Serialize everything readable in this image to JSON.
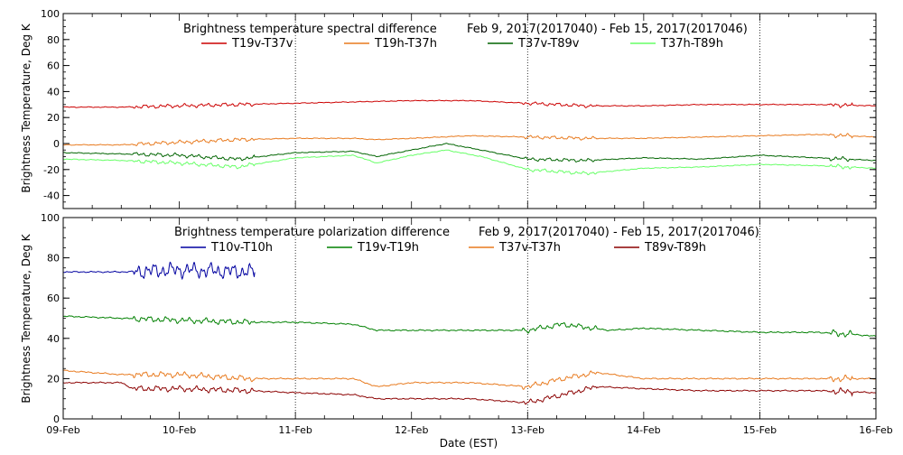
{
  "chart_data": [
    {
      "type": "line",
      "title": "Brightness temperature spectral difference",
      "subtitle": "Feb  9, 2017(2017040) - Feb 15, 2017(2017046)",
      "ylabel": "Brightness Temperature, Deg K",
      "xlabel": "",
      "ylim": [
        -50,
        100
      ],
      "yticks": [
        -40,
        -20,
        0,
        20,
        40,
        60,
        80,
        100
      ],
      "xlim": [
        0,
        7
      ],
      "vlines_at_days": [
        2,
        4,
        6
      ],
      "series": [
        {
          "name": "T19v-T37v",
          "color": "#cc0000",
          "anchors": [
            [
              0,
              28
            ],
            [
              0.5,
              28
            ],
            [
              1,
              29
            ],
            [
              1.5,
              30
            ],
            [
              2,
              31
            ],
            [
              2.5,
              32
            ],
            [
              3,
              33
            ],
            [
              3.5,
              33
            ],
            [
              4,
              31
            ],
            [
              4.5,
              29
            ],
            [
              5,
              29
            ],
            [
              5.5,
              30
            ],
            [
              6,
              30
            ],
            [
              6.5,
              30
            ],
            [
              7,
              29
            ]
          ]
        },
        {
          "name": "T19h-T37h",
          "color": "#e87a1e",
          "anchors": [
            [
              0,
              -1
            ],
            [
              0.5,
              -1
            ],
            [
              1,
              1
            ],
            [
              1.5,
              3
            ],
            [
              2,
              4
            ],
            [
              2.5,
              4
            ],
            [
              2.7,
              3
            ],
            [
              3,
              4
            ],
            [
              3.5,
              6
            ],
            [
              4,
              5
            ],
            [
              4.5,
              4
            ],
            [
              5,
              4
            ],
            [
              5.5,
              5
            ],
            [
              6,
              6
            ],
            [
              6.5,
              7
            ],
            [
              7,
              5
            ]
          ]
        },
        {
          "name": "T37v-T89v",
          "color": "#006400",
          "anchors": [
            [
              0,
              -7
            ],
            [
              0.5,
              -8
            ],
            [
              1,
              -9
            ],
            [
              1.5,
              -12
            ],
            [
              2,
              -7
            ],
            [
              2.5,
              -6
            ],
            [
              2.7,
              -10
            ],
            [
              3,
              -5
            ],
            [
              3.3,
              0
            ],
            [
              3.6,
              -5
            ],
            [
              4,
              -12
            ],
            [
              4.5,
              -13
            ],
            [
              5,
              -11
            ],
            [
              5.5,
              -12
            ],
            [
              6,
              -9
            ],
            [
              6.5,
              -11
            ],
            [
              7,
              -13
            ]
          ]
        },
        {
          "name": "T37h-T89h",
          "color": "#66ff66",
          "anchors": [
            [
              0,
              -12
            ],
            [
              0.5,
              -13
            ],
            [
              1,
              -15
            ],
            [
              1.5,
              -18
            ],
            [
              2,
              -11
            ],
            [
              2.5,
              -9
            ],
            [
              2.7,
              -15
            ],
            [
              3,
              -9
            ],
            [
              3.3,
              -5
            ],
            [
              3.6,
              -10
            ],
            [
              4,
              -20
            ],
            [
              4.5,
              -23
            ],
            [
              5,
              -19
            ],
            [
              5.5,
              -18
            ],
            [
              6,
              -16
            ],
            [
              6.5,
              -17
            ],
            [
              7,
              -19
            ]
          ]
        }
      ]
    },
    {
      "type": "line",
      "title": "Brightness temperature polarization difference",
      "subtitle": "Feb  9, 2017(2017040) - Feb 15, 2017(2017046)",
      "ylabel": "Brightness Temperature, Deg K",
      "xlabel": "Date (EST)",
      "ylim": [
        0,
        100
      ],
      "yticks": [
        0,
        20,
        40,
        60,
        80,
        100
      ],
      "xlim": [
        0,
        7
      ],
      "vlines_at_days": [
        2,
        4,
        6
      ],
      "categories": [
        "09-Feb",
        "10-Feb",
        "11-Feb",
        "12-Feb",
        "13-Feb",
        "14-Feb",
        "15-Feb",
        "16-Feb"
      ],
      "series": [
        {
          "name": "T10v-T10h",
          "color": "#0000a0",
          "end_day": 1.65,
          "anchors": [
            [
              0,
              73
            ],
            [
              0.5,
              73
            ],
            [
              1,
              74
            ],
            [
              1.65,
              73
            ]
          ]
        },
        {
          "name": "T19v-T19h",
          "color": "#008000",
          "anchors": [
            [
              0,
              51
            ],
            [
              0.5,
              50
            ],
            [
              1,
              49
            ],
            [
              1.6,
              48
            ],
            [
              2,
              48
            ],
            [
              2.5,
              47
            ],
            [
              2.7,
              44
            ],
            [
              3,
              44
            ],
            [
              3.5,
              44
            ],
            [
              4,
              44
            ],
            [
              4.3,
              47
            ],
            [
              4.7,
              44
            ],
            [
              5,
              45
            ],
            [
              5.5,
              44
            ],
            [
              6,
              43
            ],
            [
              6.5,
              43
            ],
            [
              6.8,
              42
            ],
            [
              7,
              41
            ]
          ]
        },
        {
          "name": "T37v-T37h",
          "color": "#e87a1e",
          "anchors": [
            [
              0,
              24
            ],
            [
              0.5,
              22
            ],
            [
              1,
              22
            ],
            [
              1.6,
              20
            ],
            [
              2,
              20
            ],
            [
              2.5,
              20
            ],
            [
              2.7,
              16
            ],
            [
              3,
              18
            ],
            [
              3.5,
              18
            ],
            [
              4,
              16
            ],
            [
              4.3,
              20
            ],
            [
              4.6,
              23
            ],
            [
              5,
              20
            ],
            [
              5.5,
              20
            ],
            [
              6,
              20
            ],
            [
              6.5,
              20
            ],
            [
              7,
              20
            ]
          ]
        },
        {
          "name": "T89v-T89h",
          "color": "#8b0000",
          "anchors": [
            [
              0,
              18
            ],
            [
              0.5,
              18
            ],
            [
              0.6,
              15
            ],
            [
              1,
              15
            ],
            [
              1.6,
              14
            ],
            [
              2,
              13
            ],
            [
              2.5,
              12
            ],
            [
              2.7,
              10
            ],
            [
              3,
              10
            ],
            [
              3.5,
              10
            ],
            [
              4,
              8
            ],
            [
              4.3,
              12
            ],
            [
              4.6,
              16
            ],
            [
              5,
              15
            ],
            [
              5.5,
              14
            ],
            [
              6,
              14
            ],
            [
              6.5,
              14
            ],
            [
              7,
              13
            ]
          ]
        }
      ]
    }
  ]
}
